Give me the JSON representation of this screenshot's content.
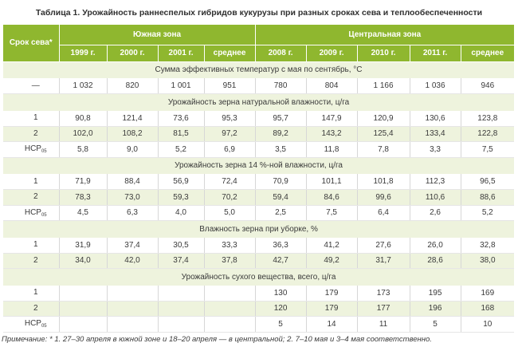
{
  "title": "Таблица 1. Урожайность раннеспелых гибридов кукурузы при разных сроках сева и теплообеспеченности",
  "header": {
    "row_label": "Срок сева*",
    "zone_south": "Южная зона",
    "zone_central": "Центральная зона",
    "years": [
      "1999 г.",
      "2000 г.",
      "2001 г.",
      "среднее",
      "2008 г.",
      "2009 г.",
      "2010 г.",
      "2011 г.",
      "среднее"
    ]
  },
  "sections": [
    {
      "title": "Сумма эффективных температур с мая по сентябрь, °С",
      "rows": [
        {
          "label": "—",
          "label_sub": "",
          "values": [
            "1 032",
            "820",
            "1 001",
            "951",
            "780",
            "804",
            "1 166",
            "1 036",
            "946"
          ]
        }
      ]
    },
    {
      "title": "Урожайность зерна натуральной влажности, ц/га",
      "rows": [
        {
          "label": "1",
          "label_sub": "",
          "values": [
            "90,8",
            "121,4",
            "73,6",
            "95,3",
            "95,7",
            "147,9",
            "120,9",
            "130,6",
            "123,8"
          ]
        },
        {
          "label": "2",
          "label_sub": "",
          "values": [
            "102,0",
            "108,2",
            "81,5",
            "97,2",
            "89,2",
            "143,2",
            "125,4",
            "133,4",
            "122,8"
          ]
        },
        {
          "label": "НСР",
          "label_sub": "05",
          "values": [
            "5,8",
            "9,0",
            "5,2",
            "6,9",
            "3,5",
            "11,8",
            "7,8",
            "3,3",
            "7,5"
          ]
        }
      ]
    },
    {
      "title": "Урожайность зерна 14 %-ной влажности, ц/га",
      "rows": [
        {
          "label": "1",
          "label_sub": "",
          "values": [
            "71,9",
            "88,4",
            "56,9",
            "72,4",
            "70,9",
            "101,1",
            "101,8",
            "112,3",
            "96,5"
          ]
        },
        {
          "label": "2",
          "label_sub": "",
          "values": [
            "78,3",
            "73,0",
            "59,3",
            "70,2",
            "59,4",
            "84,6",
            "99,6",
            "110,6",
            "88,6"
          ]
        },
        {
          "label": "НСР",
          "label_sub": "05",
          "values": [
            "4,5",
            "6,3",
            "4,0",
            "5,0",
            "2,5",
            "7,5",
            "6,4",
            "2,6",
            "5,2"
          ]
        }
      ]
    },
    {
      "title": "Влажность зерна при уборке, %",
      "rows": [
        {
          "label": "1",
          "label_sub": "",
          "values": [
            "31,9",
            "37,4",
            "30,5",
            "33,3",
            "36,3",
            "41,2",
            "27,6",
            "26,0",
            "32,8"
          ]
        },
        {
          "label": "2",
          "label_sub": "",
          "values": [
            "34,0",
            "42,0",
            "37,4",
            "37,8",
            "42,7",
            "49,2",
            "31,7",
            "28,6",
            "38,0"
          ]
        }
      ]
    },
    {
      "title": "Урожайность сухого вещества, всего, ц/га",
      "rows": [
        {
          "label": "1",
          "label_sub": "",
          "values": [
            "",
            "",
            "",
            "",
            "130",
            "179",
            "173",
            "195",
            "169"
          ]
        },
        {
          "label": "2",
          "label_sub": "",
          "values": [
            "",
            "",
            "",
            "",
            "120",
            "179",
            "177",
            "196",
            "168"
          ]
        },
        {
          "label": "НСР",
          "label_sub": "05",
          "values": [
            "",
            "",
            "",
            "",
            "5",
            "14",
            "11",
            "5",
            "10"
          ]
        }
      ]
    }
  ],
  "note": "Примечание: * 1. 27–30 апреля в южной зоне и 18–20 апреля — в центральной; 2. 7–10 мая и 3–4 мая соответственно."
}
